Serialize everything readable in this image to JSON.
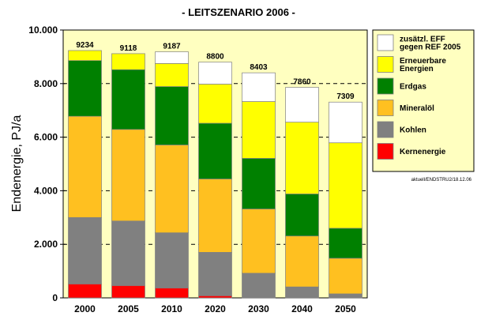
{
  "chart_data": {
    "type": "bar",
    "stacked": true,
    "title": "- LEITSZENARIO 2006 -",
    "ylabel": "Endenergie, PJ/a",
    "xlabel": "",
    "ylim": [
      0,
      10000
    ],
    "yticks": [
      0,
      2000,
      4000,
      6000,
      8000,
      10000
    ],
    "ytick_labels": [
      "0",
      "2.000",
      "4.000",
      "6.000",
      "8.000",
      "10.000"
    ],
    "categories": [
      "2000",
      "2005",
      "2010",
      "2020",
      "2030",
      "2040",
      "2050"
    ],
    "totals": [
      9234,
      9118,
      9187,
      8800,
      8403,
      7860,
      7309
    ],
    "total_labels": [
      "9234",
      "9118",
      "9187",
      "8800",
      "8403",
      "7860",
      "7309"
    ],
    "series": [
      {
        "name": "Kernenergie",
        "color": "#ff0000",
        "values": [
          520,
          460,
          370,
          80,
          0,
          0,
          0
        ]
      },
      {
        "name": "Kohlen",
        "color": "#808080",
        "values": [
          2480,
          2410,
          2060,
          1620,
          920,
          410,
          150
        ]
      },
      {
        "name": "Mineralöl",
        "color": "#ffc020",
        "values": [
          3780,
          3420,
          3280,
          2740,
          2400,
          1900,
          1330
        ]
      },
      {
        "name": "Erdgas",
        "color": "#008000",
        "values": [
          2080,
          2230,
          2180,
          2080,
          1890,
          1570,
          1120
        ]
      },
      {
        "name": "Erneuerbare Energien",
        "color": "#ffff00",
        "values": [
          374,
          598,
          860,
          1460,
          2120,
          2680,
          3190
        ]
      },
      {
        "name": "zusätzl. EFF gegen REF 2005",
        "color": "#ffffff",
        "values": [
          0,
          0,
          437,
          820,
          1073,
          1300,
          1519
        ]
      }
    ],
    "legend": {
      "placement": "right",
      "entries": [
        {
          "lines": [
            "zusätzl. EFF",
            "gegen REF 2005"
          ],
          "color": "#ffffff"
        },
        {
          "lines": [
            "Erneuerbare",
            "Energien"
          ],
          "color": "#ffff00"
        },
        {
          "lines": [
            "Erdgas"
          ],
          "color": "#008000"
        },
        {
          "lines": [
            "Mineralöl"
          ],
          "color": "#ffc020"
        },
        {
          "lines": [
            "Kohlen"
          ],
          "color": "#808080"
        },
        {
          "lines": [
            "Kernenergie"
          ],
          "color": "#ff0000"
        }
      ]
    },
    "grid": "horizontal dashed",
    "plot_background": "#ffffc0",
    "footnote": "aktuell/ENDSTRU2/18.12.06"
  }
}
